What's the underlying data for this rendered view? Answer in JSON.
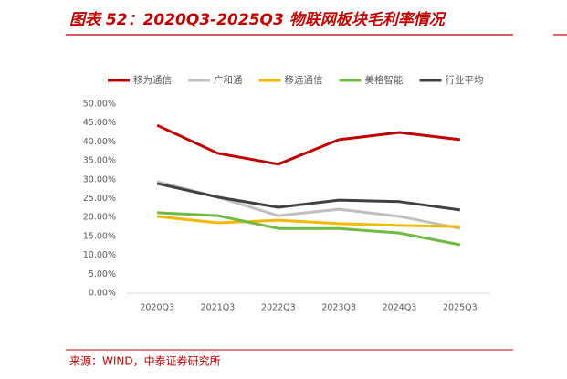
{
  "chart_data": {
    "type": "line",
    "title": "图表 52：2020Q3-2025Q3 物联网板块毛利率情况",
    "source": "来源：WIND，中泰证券研究所",
    "categories": [
      "2020Q3",
      "2021Q3",
      "2022Q3",
      "2023Q3",
      "2024Q3",
      "2025Q3"
    ],
    "series": [
      {
        "name": "移为通信",
        "color": "#c00000",
        "values": [
          44.4,
          37.0,
          34.1,
          40.6,
          42.5,
          40.6
        ]
      },
      {
        "name": "广和通",
        "color": "#bfbfbf",
        "values": [
          29.5,
          25.4,
          20.5,
          22.2,
          20.3,
          17.1
        ]
      },
      {
        "name": "移远通信",
        "color": "#f5b800",
        "values": [
          20.3,
          18.6,
          19.3,
          18.4,
          17.9,
          17.6
        ]
      },
      {
        "name": "美格智能",
        "color": "#70b944",
        "values": [
          21.3,
          20.5,
          17.1,
          17.1,
          15.9,
          12.8
        ]
      },
      {
        "name": "行业平均",
        "color": "#404040",
        "values": [
          29.0,
          25.4,
          22.7,
          24.6,
          24.2,
          22.0
        ]
      }
    ],
    "ylim": [
      0,
      50
    ],
    "yticks": [
      {
        "value": 0,
        "label": "0.00%"
      },
      {
        "value": 5,
        "label": "5.00%"
      },
      {
        "value": 10,
        "label": "10.00%"
      },
      {
        "value": 15,
        "label": "15.00%"
      },
      {
        "value": 20,
        "label": "20.00%"
      },
      {
        "value": 25,
        "label": "25.00%"
      },
      {
        "value": 30,
        "label": "30.00%"
      },
      {
        "value": 35,
        "label": "35.00%"
      },
      {
        "value": 40,
        "label": "40.00%"
      },
      {
        "value": 45,
        "label": "45.00%"
      },
      {
        "value": 50,
        "label": "50.00%"
      }
    ],
    "grid": false,
    "legend": "top"
  }
}
